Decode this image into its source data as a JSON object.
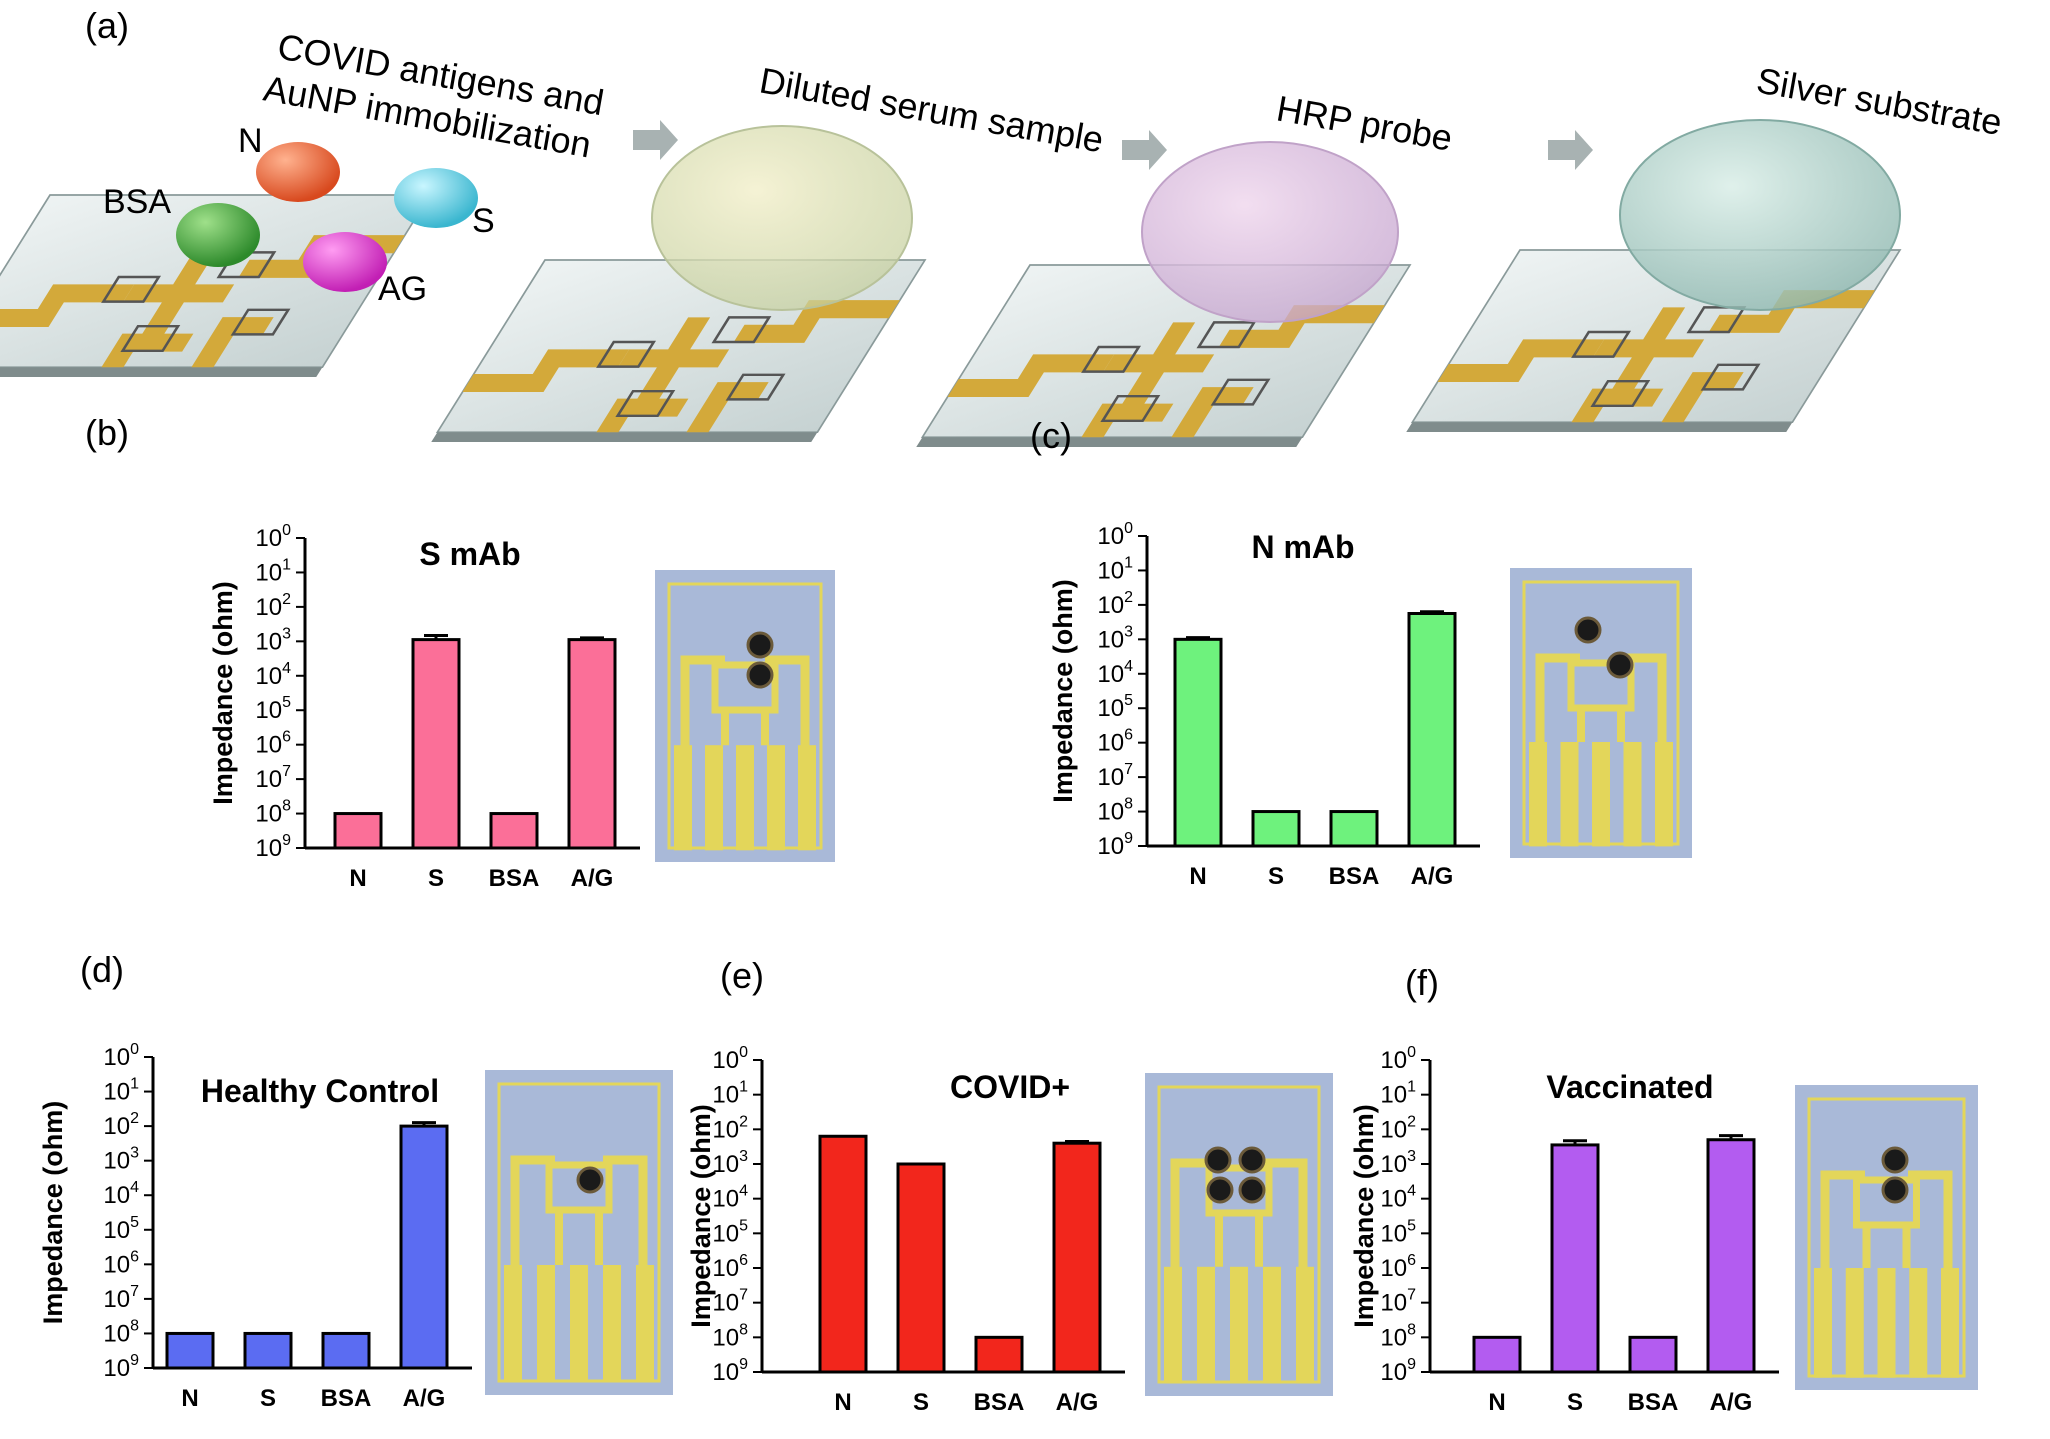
{
  "panel_labels": [
    "(a)",
    "(b)",
    "(c)",
    "(d)",
    "(e)",
    "(f)"
  ],
  "steps": {
    "step1_line1": "COVID antigens and",
    "step1_line2": "AuNP immobilization",
    "step2": "Diluted serum sample",
    "step3": "HRP probe",
    "step4": "Silver substrate"
  },
  "chip_labels": {
    "N": "N",
    "S": "S",
    "BSA": "BSA",
    "AG": "AG"
  },
  "colors": {
    "pink": "#fb6f98",
    "green": "#6ef27d",
    "blue": "#5b6cf2",
    "red": "#f2261c",
    "purple": "#b35cf0",
    "gold": "#d3a93a",
    "photo_bg": "#a9b9d8",
    "photo_trace": "#e3d65a"
  },
  "chart_data": [
    {
      "type": "bar",
      "title": "S mAb",
      "ylabel": "Impedance (ohm)",
      "ytick_base": "10",
      "ytick_exponents": [
        "0",
        "1",
        "2",
        "3",
        "4",
        "5",
        "6",
        "7",
        "8",
        "9"
      ],
      "categories": [
        "N",
        "S",
        "BSA",
        "A/G"
      ],
      "values_exponent": [
        8.0,
        2.95,
        8.0,
        2.95
      ],
      "error_exponent": [
        0,
        0.12,
        0,
        0.05
      ],
      "color": "#fb6f98"
    },
    {
      "type": "bar",
      "title": "N mAb",
      "ylabel": "Impedance (ohm)",
      "ytick_base": "10",
      "ytick_exponents": [
        "0",
        "1",
        "2",
        "3",
        "4",
        "5",
        "6",
        "7",
        "8",
        "9"
      ],
      "categories": [
        "N",
        "S",
        "BSA",
        "A/G"
      ],
      "values_exponent": [
        3.0,
        8.0,
        8.0,
        2.25
      ],
      "error_exponent": [
        0.05,
        0,
        0,
        0.05
      ],
      "color": "#6ef27d"
    },
    {
      "type": "bar",
      "title": "Healthy Control",
      "ylabel": "Impedance (ohm)",
      "ytick_base": "10",
      "ytick_exponents": [
        "0",
        "1",
        "2",
        "3",
        "4",
        "5",
        "6",
        "7",
        "8",
        "9"
      ],
      "categories": [
        "N",
        "S",
        "BSA",
        "A/G"
      ],
      "values_exponent": [
        8.0,
        8.0,
        8.0,
        2.0
      ],
      "error_exponent": [
        0,
        0,
        0,
        0.1
      ],
      "color": "#5b6cf2"
    },
    {
      "type": "bar",
      "title": "COVID+",
      "ylabel": "Impedance (ohm)",
      "ytick_base": "10",
      "ytick_exponents": [
        "0",
        "1",
        "2",
        "3",
        "4",
        "5",
        "6",
        "7",
        "8",
        "9"
      ],
      "categories": [
        "N",
        "S",
        "BSA",
        "A/G"
      ],
      "values_exponent": [
        2.2,
        3.0,
        8.0,
        2.4
      ],
      "error_exponent": [
        0,
        0,
        0,
        0.05
      ],
      "color": "#f2261c"
    },
    {
      "type": "bar",
      "title": "Vaccinated",
      "ylabel": "Impedance (ohm)",
      "ytick_base": "10",
      "ytick_exponents": [
        "0",
        "1",
        "2",
        "3",
        "4",
        "5",
        "6",
        "7",
        "8",
        "9"
      ],
      "categories": [
        "N",
        "S",
        "BSA",
        "A/G"
      ],
      "values_exponent": [
        8.0,
        2.45,
        8.0,
        2.3
      ],
      "error_exponent": [
        0,
        0.12,
        0,
        0.12
      ],
      "color": "#b35cf0"
    }
  ]
}
